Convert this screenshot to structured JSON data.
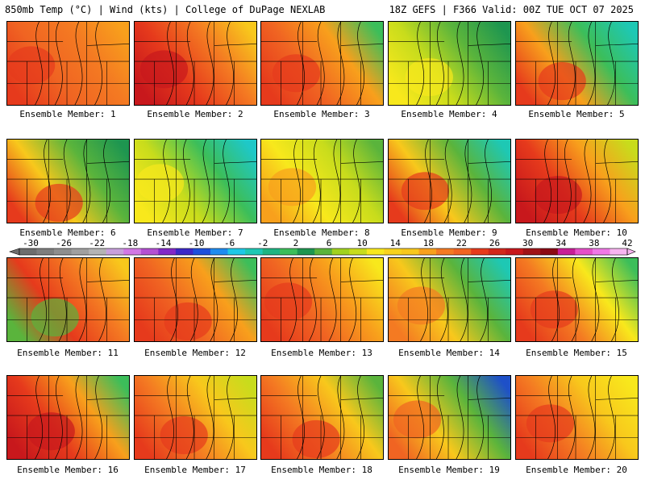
{
  "header": {
    "left": "850mb Temp (°C) | Wind (kts) | College of DuPage NEXLAB",
    "right": "18Z GEFS | F366 Valid: 00Z TUE OCT 07 2025"
  },
  "members": [
    {
      "label": "Ensemble Member: 1",
      "colors": [
        "#e63a1c",
        "#f06422",
        "#f47a22",
        "#f8a01c"
      ]
    },
    {
      "label": "Ensemble Member: 2",
      "colors": [
        "#c8181c",
        "#e63a1c",
        "#f47a22",
        "#f8c81c"
      ]
    },
    {
      "label": "Ensemble Member: 3",
      "colors": [
        "#e63a1c",
        "#f06422",
        "#f8a01c",
        "#3cbe5a"
      ]
    },
    {
      "label": "Ensemble Member: 4",
      "colors": [
        "#f8e81c",
        "#c8dc1c",
        "#5ab43c",
        "#1e9650"
      ]
    },
    {
      "label": "Ensemble Member: 5",
      "colors": [
        "#e63a1c",
        "#f8a01c",
        "#3cbe5a",
        "#1ec8b4"
      ]
    },
    {
      "label": "Ensemble Member: 6",
      "colors": [
        "#e63a1c",
        "#f8c81c",
        "#5ab43c",
        "#1e9650"
      ]
    },
    {
      "label": "Ensemble Member: 7",
      "colors": [
        "#f8e81c",
        "#c8dc1c",
        "#3cbe5a",
        "#1ec8c8"
      ]
    },
    {
      "label": "Ensemble Member: 8",
      "colors": [
        "#f8a01c",
        "#f8e81c",
        "#c8dc1c",
        "#5ab43c"
      ]
    },
    {
      "label": "Ensemble Member: 9",
      "colors": [
        "#e63a1c",
        "#f8c81c",
        "#5ab43c",
        "#1ec8b4"
      ]
    },
    {
      "label": "Ensemble Member: 10",
      "colors": [
        "#c8181c",
        "#e63a1c",
        "#f8a01c",
        "#c8dc1c"
      ]
    },
    {
      "label": "Ensemble Member: 11",
      "colors": [
        "#5ab43c",
        "#e63a1c",
        "#f47a22",
        "#f8c81c"
      ]
    },
    {
      "label": "Ensemble Member: 12",
      "colors": [
        "#e63a1c",
        "#f06422",
        "#f8a01c",
        "#3cbe5a"
      ]
    },
    {
      "label": "Ensemble Member: 13",
      "colors": [
        "#e63a1c",
        "#f06422",
        "#f8a01c",
        "#f8e81c"
      ]
    },
    {
      "label": "Ensemble Member: 14",
      "colors": [
        "#f47a22",
        "#f8c81c",
        "#5ab43c",
        "#1ec8b4"
      ]
    },
    {
      "label": "Ensemble Member: 15",
      "colors": [
        "#e63a1c",
        "#f47a22",
        "#f8e81c",
        "#3cbe5a"
      ]
    },
    {
      "label": "Ensemble Member: 16",
      "colors": [
        "#c8181c",
        "#e63a1c",
        "#f8a01c",
        "#3cbe5a"
      ]
    },
    {
      "label": "Ensemble Member: 17",
      "colors": [
        "#e63a1c",
        "#f47a22",
        "#f8c81c",
        "#c8dc1c"
      ]
    },
    {
      "label": "Ensemble Member: 18",
      "colors": [
        "#e63a1c",
        "#f47a22",
        "#f8c81c",
        "#5ab43c"
      ]
    },
    {
      "label": "Ensemble Member: 19",
      "colors": [
        "#f06422",
        "#f8c81c",
        "#5ab43c",
        "#1e50c8"
      ]
    },
    {
      "label": "Ensemble Member: 20",
      "colors": [
        "#e63a1c",
        "#f47a22",
        "#f8c81c",
        "#f8e81c"
      ]
    }
  ],
  "colorbar": {
    "labels": [
      "-30",
      "-26",
      "-22",
      "-18",
      "-14",
      "-10",
      "-6",
      "-2",
      "2",
      "6",
      "10",
      "14",
      "18",
      "22",
      "26",
      "30",
      "34",
      "38",
      "42"
    ],
    "colors": [
      "#6e6e6e",
      "#7e7e7e",
      "#8e8e8e",
      "#a0a0a0",
      "#b4b4b4",
      "#c8a0dc",
      "#d278e6",
      "#b450d2",
      "#8228c8",
      "#3c28c8",
      "#1e50dc",
      "#1e8cf0",
      "#1ec8e6",
      "#1ec8b4",
      "#1eb482",
      "#3cbe5a",
      "#1e9650",
      "#5ab43c",
      "#a0d21e",
      "#c8dc1c",
      "#f8e81c",
      "#f8d21c",
      "#f8c81c",
      "#f8a01c",
      "#f47a22",
      "#f06422",
      "#e63a1c",
      "#d2281c",
      "#c8181c",
      "#a01418",
      "#8c0a14",
      "#c81e96",
      "#e650c8",
      "#f078e6",
      "#f8b4f0"
    ]
  }
}
